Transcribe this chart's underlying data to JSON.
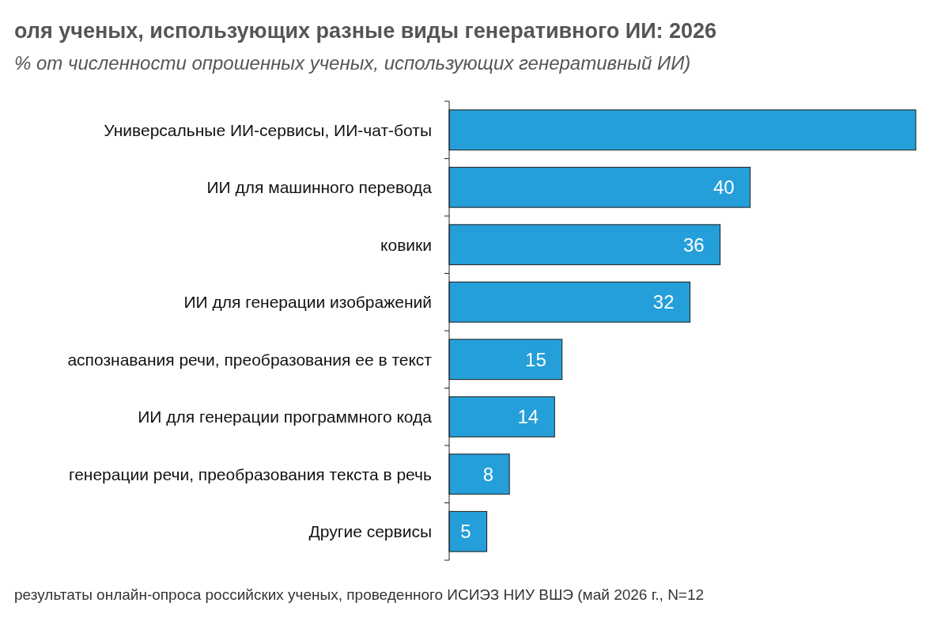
{
  "chart_data": {
    "type": "bar",
    "orientation": "horizontal",
    "title": "оля ученых, использующих разные виды генеративного ИИ: 2026",
    "subtitle": "% от численности опрошенных ученых, использующих генеративный ИИ)",
    "categories": [
      "Универсальные ИИ-сервисы, ИИ-чат-боты",
      "ИИ для машинного перевода",
      "ковики",
      "ИИ для генерации изображений",
      "аспознавания речи, преобразования ее в текст",
      "ИИ для генерации программного кода",
      "генерации речи, преобразования текста в речь",
      "Другие сервисы"
    ],
    "values": [
      62,
      40,
      36,
      32,
      15,
      14,
      8,
      5
    ],
    "value_labels": [
      null,
      "40",
      "36",
      "32",
      "15",
      "14",
      "8",
      "5"
    ],
    "color": "#259fd9",
    "annotations": [
      "результаты онлайн-опроса российских ученых, проведенного ИСИЭЗ НИУ ВШЭ (май 2026 г., N=12"
    ]
  }
}
